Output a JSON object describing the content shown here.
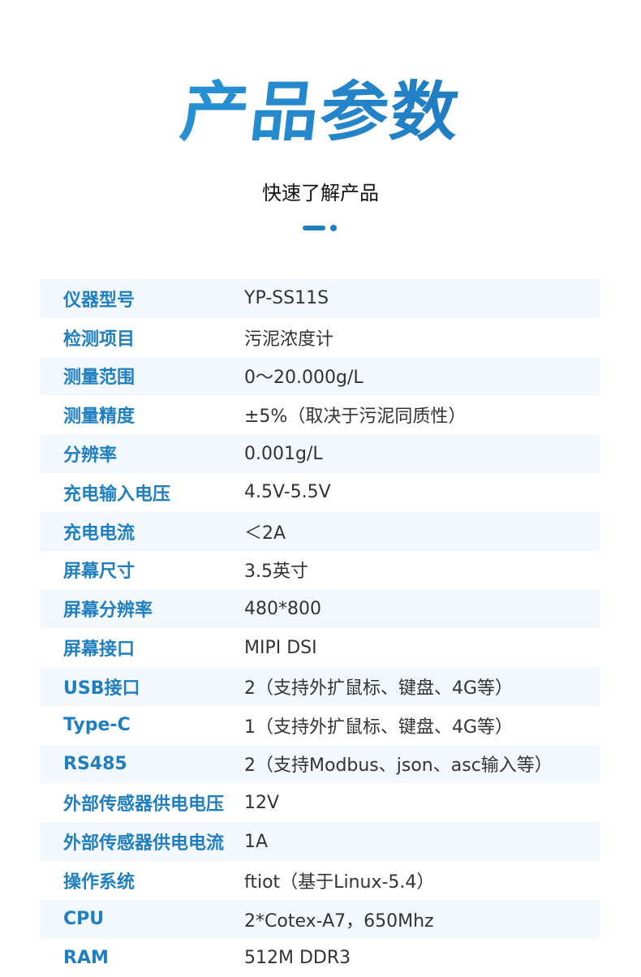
{
  "header": {
    "title": "产品参数",
    "subtitle": "快速了解产品",
    "accent_color": "#1f7fc0"
  },
  "specs": [
    {
      "label": "仪器型号",
      "value": "YP-SS11S"
    },
    {
      "label": "检测项目",
      "value": "污泥浓度计"
    },
    {
      "label": "测量范围",
      "value": "0～20.000g/L"
    },
    {
      "label": "测量精度",
      "value": "±5%（取决于污泥同质性）"
    },
    {
      "label": "分辨率",
      "value": "0.001g/L"
    },
    {
      "label": "充电输入电压",
      "value": "4.5V-5.5V"
    },
    {
      "label": "充电电流",
      "value": "＜2A"
    },
    {
      "label": "屏幕尺寸",
      "value": "3.5英寸"
    },
    {
      "label": "屏幕分辨率",
      "value": "480*800"
    },
    {
      "label": "屏幕接口",
      "value": "MIPI DSI"
    },
    {
      "label": "USB接口",
      "value": "2（支持外扩鼠标、键盘、4G等）"
    },
    {
      "label": "Type-C",
      "value": "1（支持外扩鼠标、键盘、4G等）"
    },
    {
      "label": "RS485",
      "value": "2（支持Modbus、json、asc输入等）"
    },
    {
      "label": "外部传感器供电电压",
      "value": "12V"
    },
    {
      "label": "外部传感器供电电流",
      "value": "1A"
    },
    {
      "label": "操作系统",
      "value": "ftiot（基于Linux-5.4）"
    },
    {
      "label": "CPU",
      "value": "2*Cotex-A7，650Mhz"
    },
    {
      "label": "RAM",
      "value": "512M DDR3"
    }
  ]
}
